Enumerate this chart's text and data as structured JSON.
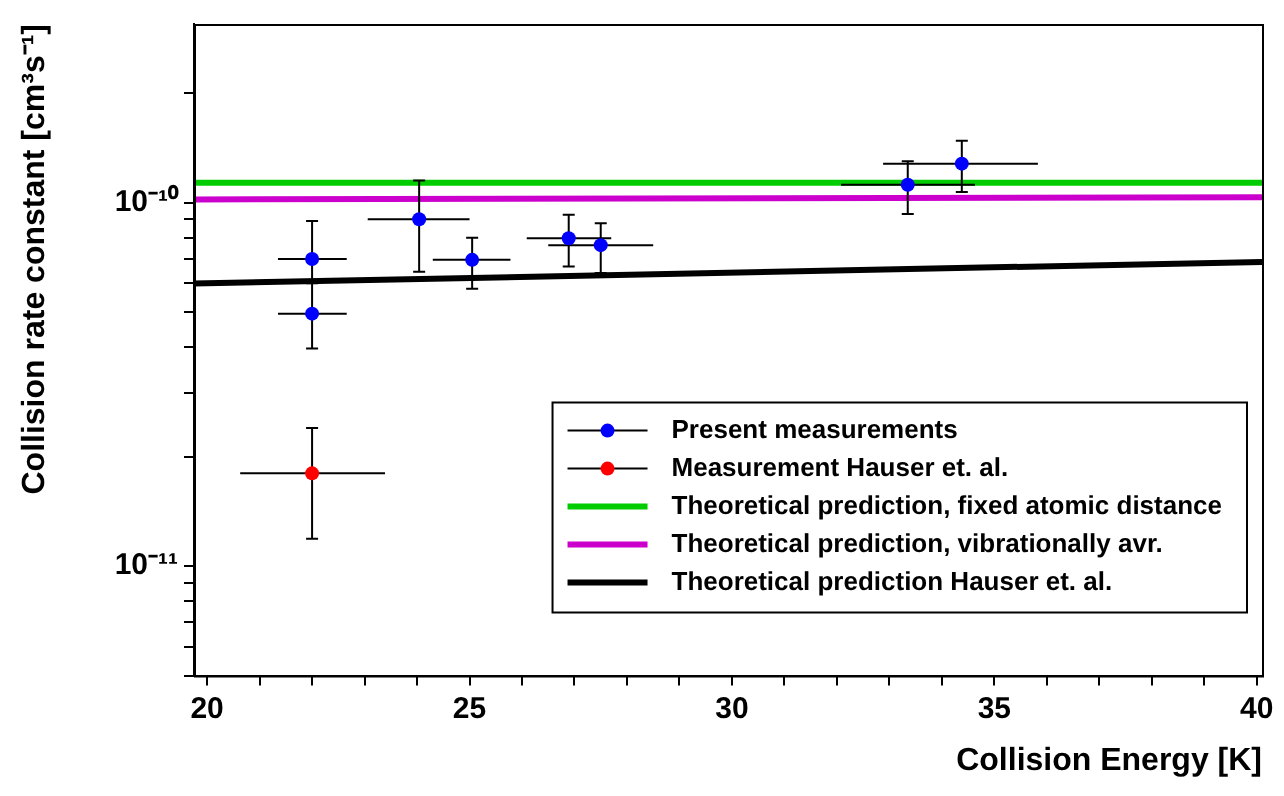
{
  "chart_data": {
    "type": "scatter",
    "xlabel": "Collision Energy [K]",
    "ylabel": "Collision rate constant [cm³s⁻¹]",
    "xlim": [
      19.75,
      40.1
    ],
    "ylim": [
      5e-12,
      3.1e-10
    ],
    "xticks": [
      20,
      {
        "value": 21,
        "label": null
      },
      {
        "value": 22,
        "label": null
      },
      {
        "value": 23,
        "label": null
      },
      {
        "value": 24,
        "label": null
      },
      25,
      {
        "value": 26,
        "label": null
      },
      {
        "value": 27,
        "label": null
      },
      {
        "value": 28,
        "label": null
      },
      {
        "value": 29,
        "label": null
      },
      30,
      {
        "value": 31,
        "label": null
      },
      {
        "value": 32,
        "label": null
      },
      {
        "value": 33,
        "label": null
      },
      {
        "value": 34,
        "label": null
      },
      35,
      {
        "value": 36,
        "label": null
      },
      {
        "value": 37,
        "label": null
      },
      {
        "value": 38,
        "label": null
      },
      {
        "value": 39,
        "label": null
      },
      40
    ],
    "yticks": [
      {
        "value": 5e-12,
        "label": null
      },
      {
        "value": 6e-12,
        "label": null
      },
      {
        "value": 7e-12,
        "label": null
      },
      {
        "value": 8e-12,
        "label": null
      },
      {
        "value": 9e-12,
        "label": null
      },
      {
        "value": 1e-11,
        "label": "10⁻¹¹"
      },
      {
        "value": 2e-11,
        "label": null
      },
      {
        "value": 3e-11,
        "label": null
      },
      {
        "value": 4e-11,
        "label": null
      },
      {
        "value": 5e-11,
        "label": null
      },
      {
        "value": 6e-11,
        "label": null
      },
      {
        "value": 7e-11,
        "label": null
      },
      {
        "value": 8e-11,
        "label": null
      },
      {
        "value": 9e-11,
        "label": null
      },
      {
        "value": 1e-10,
        "label": "10⁻¹⁰"
      },
      {
        "value": 2e-10,
        "label": null
      }
    ],
    "log": "y",
    "grid": false,
    "legend": "bottom right",
    "series": [
      {
        "name": "Present measurements",
        "marker": "circle",
        "color": "#0000ff",
        "x": [
          22,
          22,
          24.04,
          25.05,
          26.89,
          27.5,
          33.35,
          34.38
        ],
        "values": [
          7e-11,
          4.95e-11,
          9e-11,
          6.96e-11,
          7.98e-11,
          7.64e-11,
          1.12e-10,
          1.28e-10
        ],
        "errors": [
          [
            6.1e-11,
            8.9e-11
          ],
          [
            3.97e-11,
            6e-11
          ],
          [
            6.45e-11,
            1.15e-10
          ],
          [
            5.8e-11,
            8e-11
          ],
          [
            6.67e-11,
            9.26e-11
          ],
          [
            6.4e-11,
            8.77e-11
          ],
          [
            9.3e-11,
            1.3e-10
          ],
          [
            1.07e-10,
            1.48e-10
          ]
        ],
        "xerrors": [
          [
            21.35,
            22.66
          ],
          [
            21.35,
            22.66
          ],
          [
            23.06,
            25.0
          ],
          [
            24.3,
            25.78
          ],
          [
            26.09,
            27.7
          ],
          [
            26.5,
            28.5
          ],
          [
            32.08,
            34.63
          ],
          [
            32.88,
            35.83
          ]
        ]
      },
      {
        "name": "Measurement Hauser et. al.",
        "marker": "circle",
        "color": "#ff0000",
        "x": [
          22.0
        ],
        "values": [
          1.8e-11
        ],
        "errors": [
          [
            1.19e-11,
            2.4e-11
          ]
        ],
        "xerrors": [
          [
            20.63,
            23.39
          ]
        ]
      },
      {
        "name": "Theoretical prediction, fixed atomic distance",
        "type": "line",
        "marker": "none",
        "color": "#00cc00",
        "x": [
          19.75,
          40.1
        ],
        "values": [
          1.135e-10,
          1.135e-10
        ]
      },
      {
        "name": "Theoretical prediction, vibrationally avr.",
        "type": "line",
        "marker": "none",
        "color": "#cc00cc",
        "x": [
          19.75,
          40.1
        ],
        "values": [
          1.02e-10,
          1.035e-10
        ]
      },
      {
        "name": "Theoretical prediction Hauser et. al.",
        "type": "line",
        "marker": "none",
        "color": "#000000",
        "x": [
          19.75,
          40.1
        ],
        "values": [
          5.99e-11,
          6.87e-11
        ]
      }
    ]
  }
}
